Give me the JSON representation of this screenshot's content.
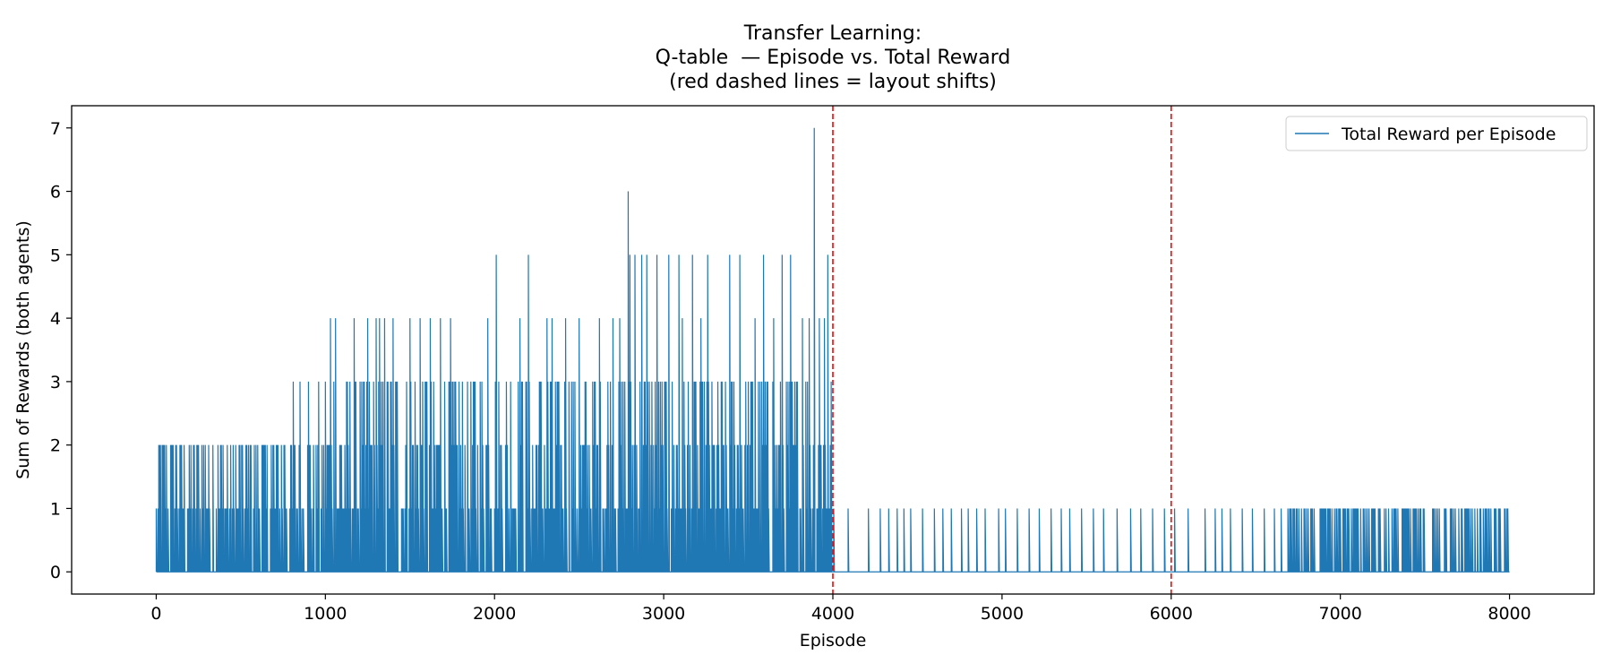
{
  "chart_data": {
    "type": "line",
    "title": [
      "Transfer Learning:",
      "Q-table  — Episode vs. Total Reward",
      "(red dashed lines = layout shifts)"
    ],
    "xlabel": "Episode",
    "ylabel": "Sum of Rewards (both agents)",
    "xlim": [
      -500,
      8500
    ],
    "ylim": [
      -0.35,
      7.35
    ],
    "xticks": [
      0,
      1000,
      2000,
      3000,
      4000,
      5000,
      6000,
      7000,
      8000
    ],
    "yticks": [
      0,
      1,
      2,
      3,
      4,
      5,
      6,
      7
    ],
    "grid": false,
    "legend": {
      "position": "top-right",
      "entries": [
        "Total Reward per Episode"
      ]
    },
    "vlines": [
      {
        "x": 4000,
        "color": "#ff0000",
        "style": "dashed"
      },
      {
        "x": 6000,
        "color": "#ff0000",
        "style": "dashed"
      }
    ],
    "series": [
      {
        "name": "Total Reward per Episode",
        "color": "#1f77b4",
        "segments": [
          {
            "x_start": 0,
            "x_end": 800,
            "min": 0,
            "max": 2,
            "spikes": [
              [
                95,
                2
              ],
              [
                120,
                2
              ],
              [
                145,
                2
              ],
              [
                240,
                2
              ],
              [
                290,
                2
              ],
              [
                380,
                2
              ],
              [
                420,
                2
              ],
              [
                470,
                2
              ],
              [
                560,
                2
              ],
              [
                640,
                2
              ],
              [
                680,
                2
              ],
              [
                720,
                2
              ],
              [
                760,
                2
              ]
            ]
          },
          {
            "x_start": 800,
            "x_end": 1000,
            "min": 0,
            "max": 2,
            "spikes": [
              [
                810,
                3
              ],
              [
                850,
                3
              ],
              [
                900,
                3
              ],
              [
                960,
                3
              ]
            ]
          },
          {
            "x_start": 1000,
            "x_end": 2000,
            "min": 0,
            "max": 3,
            "spikes": [
              [
                1030,
                4
              ],
              [
                1060,
                4
              ],
              [
                1170,
                4
              ],
              [
                1250,
                4
              ],
              [
                1300,
                4
              ],
              [
                1320,
                4
              ],
              [
                1350,
                4
              ],
              [
                1400,
                4
              ],
              [
                1500,
                4
              ],
              [
                1560,
                4
              ],
              [
                1620,
                4
              ],
              [
                1680,
                4
              ],
              [
                1740,
                4
              ],
              [
                1960,
                4
              ]
            ]
          },
          {
            "x_start": 2000,
            "x_end": 2780,
            "min": 0,
            "max": 3,
            "spikes": [
              [
                2010,
                5
              ],
              [
                2200,
                5
              ],
              [
                2150,
                4
              ],
              [
                2310,
                4
              ],
              [
                2340,
                4
              ],
              [
                2420,
                4
              ],
              [
                2500,
                4
              ],
              [
                2620,
                4
              ],
              [
                2700,
                4
              ],
              [
                2740,
                4
              ]
            ]
          },
          {
            "x_start": 2780,
            "x_end": 4000,
            "min": 0,
            "max": 3,
            "spikes": [
              [
                2790,
                6
              ],
              [
                2800,
                5
              ],
              [
                2830,
                5
              ],
              [
                2870,
                5
              ],
              [
                2900,
                5
              ],
              [
                2960,
                5
              ],
              [
                3030,
                5
              ],
              [
                3090,
                5
              ],
              [
                3170,
                5
              ],
              [
                3260,
                5
              ],
              [
                3390,
                5
              ],
              [
                3450,
                5
              ],
              [
                3590,
                5
              ],
              [
                3700,
                5
              ],
              [
                3750,
                5
              ],
              [
                3890,
                7
              ],
              [
                3970,
                5
              ],
              [
                3820,
                4
              ],
              [
                3860,
                4
              ],
              [
                3920,
                4
              ],
              [
                3950,
                4
              ],
              [
                3110,
                4
              ],
              [
                3220,
                4
              ],
              [
                3540,
                4
              ],
              [
                3650,
                4
              ]
            ]
          },
          {
            "x_start": 4000,
            "x_end": 8000,
            "min": 0,
            "max": 1,
            "spikes": [
              [
                4005,
                1
              ],
              [
                4090,
                1
              ],
              [
                4210,
                1
              ],
              [
                4280,
                1
              ],
              [
                4330,
                1
              ],
              [
                4380,
                1
              ],
              [
                4420,
                1
              ],
              [
                4460,
                1
              ],
              [
                4530,
                1
              ],
              [
                4600,
                1
              ],
              [
                4650,
                1
              ],
              [
                4700,
                1
              ],
              [
                4760,
                1
              ],
              [
                4800,
                1
              ],
              [
                4850,
                1
              ],
              [
                4900,
                1
              ],
              [
                4980,
                1
              ],
              [
                5020,
                1
              ],
              [
                5090,
                1
              ],
              [
                5160,
                1
              ],
              [
                5220,
                1
              ],
              [
                5290,
                1
              ],
              [
                5350,
                1
              ],
              [
                5400,
                1
              ],
              [
                5470,
                1
              ],
              [
                5540,
                1
              ],
              [
                5600,
                1
              ],
              [
                5680,
                1
              ],
              [
                5760,
                1
              ],
              [
                5820,
                1
              ],
              [
                5890,
                1
              ],
              [
                5960,
                1
              ],
              [
                6020,
                1
              ],
              [
                6100,
                1
              ],
              [
                6200,
                1
              ],
              [
                6260,
                1
              ],
              [
                6300,
                1
              ],
              [
                6350,
                1
              ],
              [
                6420,
                1
              ],
              [
                6480,
                1
              ],
              [
                6550,
                1
              ],
              [
                6610,
                1
              ],
              [
                6650,
                1
              ]
            ],
            "dense_from": 6680
          }
        ]
      }
    ]
  }
}
